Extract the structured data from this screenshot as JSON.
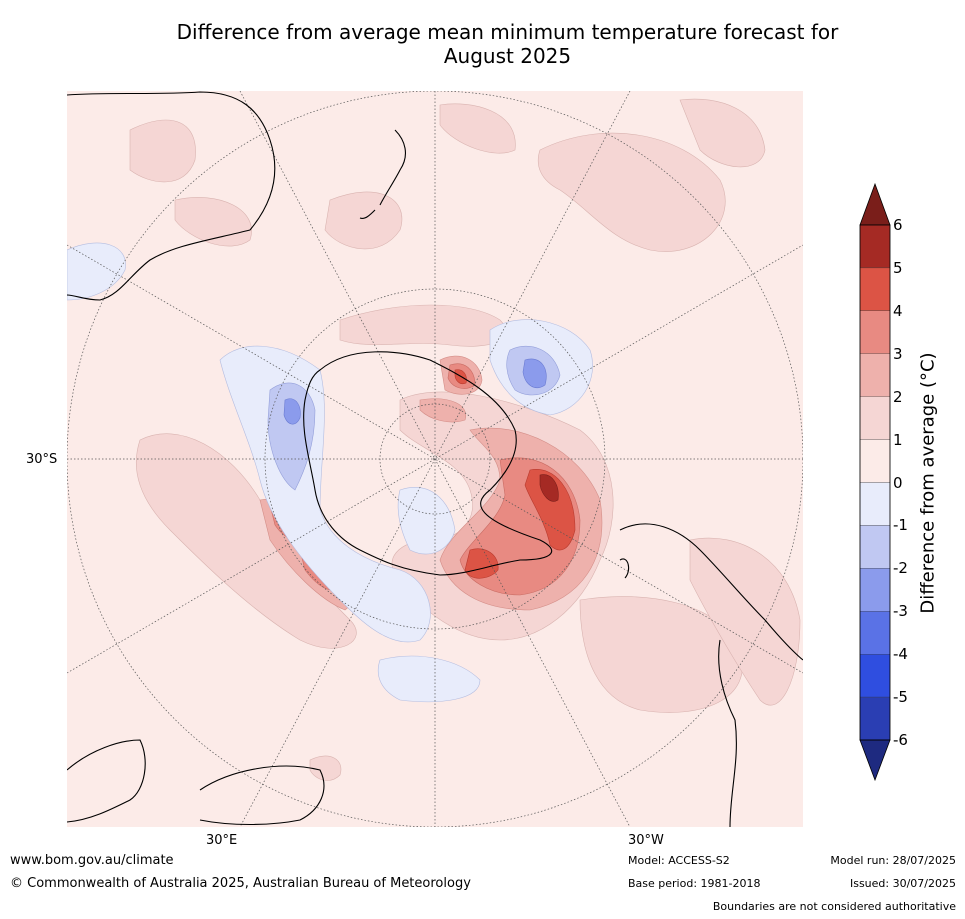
{
  "title": {
    "line1": "Difference from average mean minimum temperature forecast for",
    "line2": "August 2025"
  },
  "map": {
    "projection": "south-polar-stereographic",
    "lat_label": "30°S",
    "lon_labels": [
      "30°E",
      "30°W"
    ],
    "anomaly_colors": {
      "p0_1": "#fcebe8",
      "p1_2": "#f5d6d4",
      "p2_3": "#eeb1ac",
      "p3_4": "#e88a82",
      "p4_5": "#dc5445",
      "p5_6": "#a52a24",
      "p6_plus": "#7a1e1a",
      "n0_1": "#e8ecfb",
      "n1_2": "#c0c8f2",
      "n2_3": "#8b9bec"
    }
  },
  "colorbar": {
    "label": "Difference from average (°C)",
    "ticks": [
      "6",
      "5",
      "4",
      "3",
      "2",
      "1",
      "0",
      "-1",
      "-2",
      "-3",
      "-4",
      "-5",
      "-6"
    ],
    "colors": [
      "#a52a24",
      "#dc5445",
      "#e88a82",
      "#eeb1ac",
      "#f5d6d4",
      "#fcebe8",
      "#e8ecfb",
      "#c0c8f2",
      "#8b9bec",
      "#5a72e6",
      "#2f4ee0",
      "#2a3eb3"
    ],
    "top_arrow_color": "#7a1e1a",
    "bottom_arrow_color": "#1e2a80"
  },
  "footer": {
    "website": "www.bom.gov.au/climate",
    "copyright": "© Commonwealth of Australia 2025, Australian Bureau of Meteorology",
    "model": "Model: ACCESS-S2",
    "base_period": "Base period: 1981-2018",
    "model_run": "Model run: 28/07/2025",
    "issued": "Issued: 30/07/2025",
    "disclaimer": "Boundaries are not considered authoritative"
  }
}
